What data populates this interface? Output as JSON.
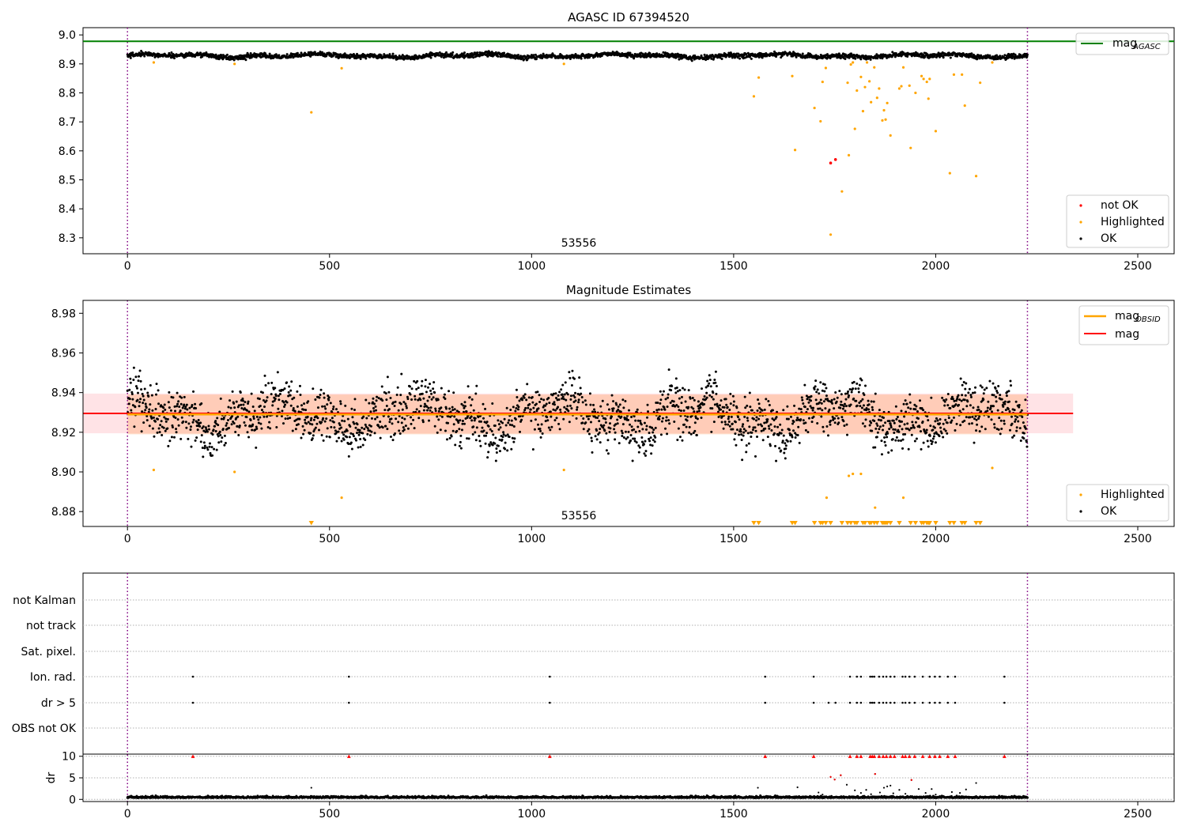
{
  "figure": {
    "panels": {
      "agasc": {
        "title": "AGASC ID 67394520",
        "obsid_label": "53556",
        "xticks": [
          0,
          500,
          1000,
          1500,
          2000,
          2500
        ],
        "yticks": [
          "8.3",
          "8.4",
          "8.5",
          "8.6",
          "8.7",
          "8.8",
          "8.9",
          "9.0"
        ],
        "legend_top": {
          "line_label": "mag",
          "line_sub": "AGASC"
        },
        "legend_bottom": [
          "not OK",
          "Highlighted",
          "OK"
        ]
      },
      "estimates": {
        "title": "Magnitude Estimates",
        "obsid_label": "53556",
        "xticks": [
          0,
          500,
          1000,
          1500,
          2000,
          2500
        ],
        "yticks": [
          "8.88",
          "8.90",
          "8.92",
          "8.94",
          "8.96",
          "8.98"
        ],
        "legend_top": [
          {
            "label": "mag",
            "sub": "OBSID"
          },
          {
            "label": "mag",
            "sub": ""
          }
        ],
        "legend_bottom": [
          "Highlighted",
          "OK"
        ]
      },
      "flags": {
        "categories": [
          "not Kalman",
          "not track",
          "Sat. pixel.",
          "Ion. rad.",
          "dr > 5",
          "OBS not OK"
        ],
        "dr_label": "dr",
        "dr_yticks": [
          "0",
          "5",
          "10"
        ],
        "xticks": [
          0,
          500,
          1000,
          1500,
          2000,
          2500
        ]
      }
    }
  },
  "chart_data": [
    {
      "type": "scatter",
      "title": "AGASC ID 67394520",
      "xlabel": "",
      "ylabel": "",
      "xlim": [
        -110,
        2590
      ],
      "ylim": [
        8.245,
        9.025
      ],
      "grid": false,
      "annotations": [
        {
          "text": "53556",
          "x": 1110,
          "y": 8.27
        }
      ],
      "vlines": [
        0,
        2227
      ],
      "hline": {
        "name": "mag_AGASC",
        "y": 8.978,
        "color": "#008000"
      },
      "series": [
        {
          "name": "OK",
          "color": "#000000",
          "band": {
            "x_start": 0,
            "x_end": 2227,
            "center": 8.928,
            "half_width": 0.012
          }
        },
        {
          "name": "Highlighted",
          "color": "#ffa500",
          "points": [
            [
              65,
              8.905
            ],
            [
              265,
              8.9
            ],
            [
              455,
              8.733
            ],
            [
              530,
              8.885
            ],
            [
              1080,
              8.9
            ],
            [
              1550,
              8.788
            ],
            [
              1562,
              8.853
            ],
            [
              1645,
              8.858
            ],
            [
              1652,
              8.603
            ],
            [
              1700,
              8.748
            ],
            [
              1715,
              8.702
            ],
            [
              1720,
              8.838
            ],
            [
              1728,
              8.886
            ],
            [
              1740,
              8.311
            ],
            [
              1768,
              8.46
            ],
            [
              1782,
              8.835
            ],
            [
              1785,
              8.585
            ],
            [
              1790,
              8.898
            ],
            [
              1795,
              8.905
            ],
            [
              1800,
              8.676
            ],
            [
              1805,
              8.808
            ],
            [
              1815,
              8.855
            ],
            [
              1820,
              8.737
            ],
            [
              1825,
              8.82
            ],
            [
              1830,
              8.905
            ],
            [
              1836,
              8.84
            ],
            [
              1840,
              8.768
            ],
            [
              1848,
              8.888
            ],
            [
              1855,
              8.783
            ],
            [
              1860,
              8.815
            ],
            [
              1868,
              8.705
            ],
            [
              1872,
              8.74
            ],
            [
              1876,
              8.708
            ],
            [
              1880,
              8.765
            ],
            [
              1888,
              8.653
            ],
            [
              1910,
              8.815
            ],
            [
              1915,
              8.823
            ],
            [
              1920,
              8.888
            ],
            [
              1935,
              8.825
            ],
            [
              1938,
              8.61
            ],
            [
              1950,
              8.8
            ],
            [
              1965,
              8.858
            ],
            [
              1970,
              8.848
            ],
            [
              1978,
              8.838
            ],
            [
              1982,
              8.78
            ],
            [
              1985,
              8.848
            ],
            [
              2000,
              8.668
            ],
            [
              2035,
              8.523
            ],
            [
              2045,
              8.863
            ],
            [
              2065,
              8.863
            ],
            [
              2072,
              8.756
            ],
            [
              2100,
              8.513
            ],
            [
              2110,
              8.835
            ],
            [
              2140,
              8.905
            ]
          ]
        },
        {
          "name": "not OK",
          "color": "#ff0000",
          "points": [
            [
              1740,
              8.558
            ],
            [
              1752,
              8.57
            ]
          ]
        }
      ]
    },
    {
      "type": "scatter",
      "title": "Magnitude Estimates",
      "xlabel": "",
      "ylabel": "",
      "xlim": [
        -110,
        2590
      ],
      "ylim": [
        8.8725,
        8.9865
      ],
      "grid": false,
      "annotations": [
        {
          "text": "53556",
          "x": 1110,
          "y": 8.878
        }
      ],
      "vlines": [
        0,
        2227
      ],
      "lines": [
        {
          "name": "mag_OBSID",
          "y": 8.929,
          "x_start": 0,
          "x_end": 2227,
          "color": "#ffa500",
          "band": [
            8.919,
            8.939
          ]
        },
        {
          "name": "mag",
          "y": 8.9295,
          "x_start": -110,
          "x_end": 2340,
          "color": "#ff0000",
          "band": [
            8.9195,
            8.9395
          ]
        }
      ],
      "series": [
        {
          "name": "OK",
          "color": "#000000",
          "band": {
            "x_start": 0,
            "x_end": 2227,
            "center": 8.928,
            "half_width": 0.011,
            "min": 8.898,
            "max": 8.956
          }
        },
        {
          "name": "Highlighted",
          "color": "#ffa500",
          "points": [
            [
              65,
              8.901
            ],
            [
              265,
              8.9
            ],
            [
              530,
              8.887
            ],
            [
              1080,
              8.901
            ],
            [
              1730,
              8.887
            ],
            [
              1785,
              8.898
            ],
            [
              1795,
              8.899
            ],
            [
              1815,
              8.899
            ],
            [
              1850,
              8.882
            ],
            [
              1920,
              8.887
            ],
            [
              2140,
              8.902
            ]
          ],
          "below_axis_x": [
            455,
            1550,
            1562,
            1645,
            1652,
            1700,
            1715,
            1720,
            1728,
            1740,
            1768,
            1782,
            1790,
            1800,
            1805,
            1820,
            1825,
            1836,
            1840,
            1848,
            1855,
            1868,
            1872,
            1876,
            1880,
            1888,
            1910,
            1938,
            1950,
            1965,
            1970,
            1978,
            1982,
            1985,
            2000,
            2035,
            2045,
            2065,
            2072,
            2100,
            2110
          ]
        }
      ]
    },
    {
      "type": "scatter",
      "title": "",
      "xlabel": "",
      "ylabel": "dr",
      "xlim": [
        -110,
        2590
      ],
      "dr_ylim": [
        -0.5,
        10.5
      ],
      "vlines": [
        0,
        2227
      ],
      "flags": {
        "not Kalman": [],
        "not track": [],
        "Sat. pixel.": [],
        "Ion. rad.": [
          162,
          548,
          1045,
          1578,
          1698,
          1788,
          1805,
          1815,
          1838,
          1843,
          1848,
          1860,
          1870,
          1878,
          1888,
          1898,
          1918,
          1925,
          1935,
          1948,
          1968,
          1985,
          1998,
          2010,
          2030,
          2048,
          2170
        ],
        "dr > 5": [
          162,
          548,
          1045,
          1578,
          1698,
          1735,
          1752,
          1788,
          1805,
          1815,
          1838,
          1843,
          1848,
          1860,
          1870,
          1878,
          1888,
          1898,
          1918,
          1925,
          1935,
          1948,
          1968,
          1985,
          1998,
          2010,
          2030,
          2048,
          2170
        ],
        "OBS not OK": []
      },
      "dr": {
        "baseline": {
          "x_start": 0,
          "x_end": 2227,
          "center": 0.35,
          "half_width": 0.3
        },
        "outliers": [
          [
            455,
            2.7
          ],
          [
            1560,
            2.7
          ],
          [
            1658,
            2.8
          ],
          [
            1710,
            1.6
          ],
          [
            1720,
            1.1
          ],
          [
            1740,
            5.2
          ],
          [
            1750,
            4.6
          ],
          [
            1765,
            5.6
          ],
          [
            1780,
            3.4
          ],
          [
            1800,
            2.1
          ],
          [
            1815,
            1.5
          ],
          [
            1828,
            2.2
          ],
          [
            1840,
            1.2
          ],
          [
            1850,
            5.9
          ],
          [
            1862,
            1.6
          ],
          [
            1872,
            2.7
          ],
          [
            1880,
            3.0
          ],
          [
            1888,
            3.2
          ],
          [
            1895,
            1.4
          ],
          [
            1910,
            2.2
          ],
          [
            1925,
            1.3
          ],
          [
            1940,
            4.5
          ],
          [
            1958,
            2.4
          ],
          [
            1975,
            1.5
          ],
          [
            1990,
            2.4
          ],
          [
            2000,
            1.1
          ],
          [
            2040,
            1.7
          ],
          [
            2060,
            1.5
          ],
          [
            2075,
            2.3
          ],
          [
            2100,
            3.8
          ]
        ],
        "clipped_at_10": [
          162,
          548,
          1045,
          1578,
          1698,
          1788,
          1805,
          1815,
          1838,
          1843,
          1848,
          1860,
          1870,
          1878,
          1888,
          1898,
          1918,
          1925,
          1935,
          1948,
          1968,
          1985,
          1998,
          2010,
          2030,
          2048,
          2170
        ]
      }
    }
  ]
}
